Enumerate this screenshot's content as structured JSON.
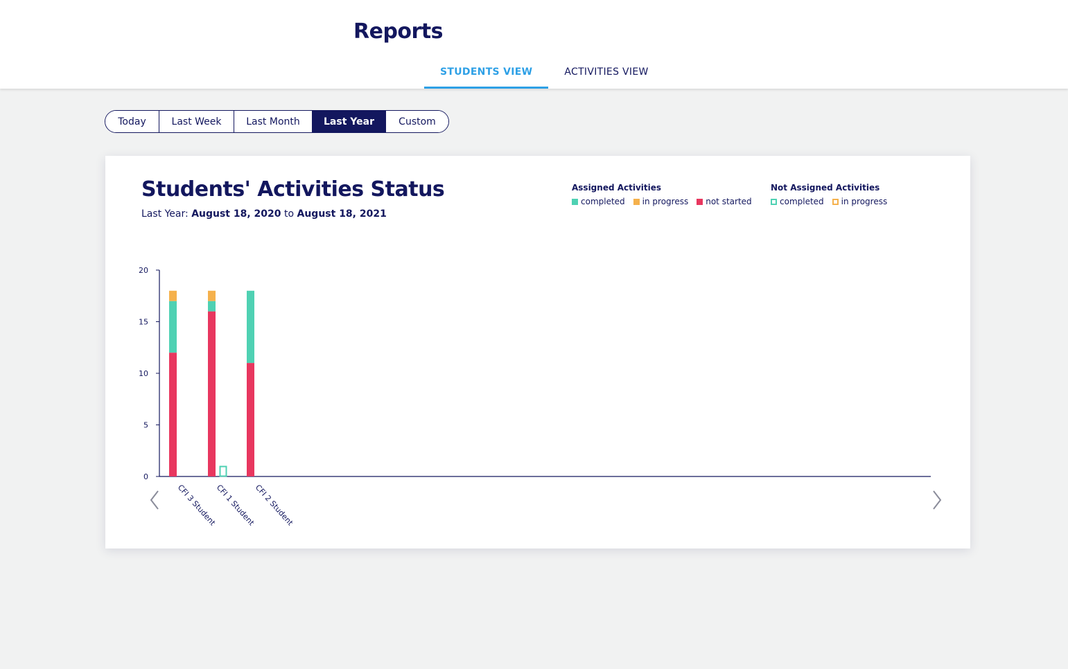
{
  "header": {
    "title": "Reports",
    "tabs": [
      {
        "label": "STUDENTS VIEW",
        "active": true
      },
      {
        "label": "ACTIVITIES VIEW",
        "active": false
      }
    ]
  },
  "date_range": {
    "options": [
      "Today",
      "Last Week",
      "Last Month",
      "Last Year",
      "Custom"
    ],
    "selected": "Last Year"
  },
  "report": {
    "subtitle_prefix": "Last Year:",
    "start_date": "August 18, 2020",
    "subtitle_joiner": "to",
    "end_date": "August 18, 2021"
  },
  "legend": {
    "assigned_title": "Assigned Activities",
    "not_assigned_title": "Not Assigned Activities"
  },
  "colors": {
    "completed": "#4fd1b3",
    "in_progress": "#f5b14c",
    "not_started": "#e8375f",
    "axis": "#13175e",
    "arrow": "#8a8c9a"
  },
  "chart_data": {
    "type": "bar",
    "stacked": true,
    "title": "Students' Activities Status",
    "categories": [
      "CFI 3 Student",
      "CFI 1 Student",
      "CFI 2 Student"
    ],
    "ylim": [
      0,
      20
    ],
    "yticks": [
      0,
      5,
      10,
      15,
      20
    ],
    "grid": false,
    "legend_position": "top-right",
    "groups": [
      {
        "name": "Assigned Activities",
        "series": [
          {
            "name": "not started",
            "values": [
              12,
              16,
              11
            ]
          },
          {
            "name": "completed",
            "values": [
              5,
              1,
              7
            ]
          },
          {
            "name": "in progress",
            "values": [
              1,
              1,
              0
            ]
          }
        ]
      },
      {
        "name": "Not Assigned Activities",
        "series": [
          {
            "name": "completed",
            "values": [
              0,
              1,
              0
            ]
          },
          {
            "name": "in progress",
            "values": [
              0,
              0,
              0
            ]
          }
        ]
      }
    ]
  }
}
